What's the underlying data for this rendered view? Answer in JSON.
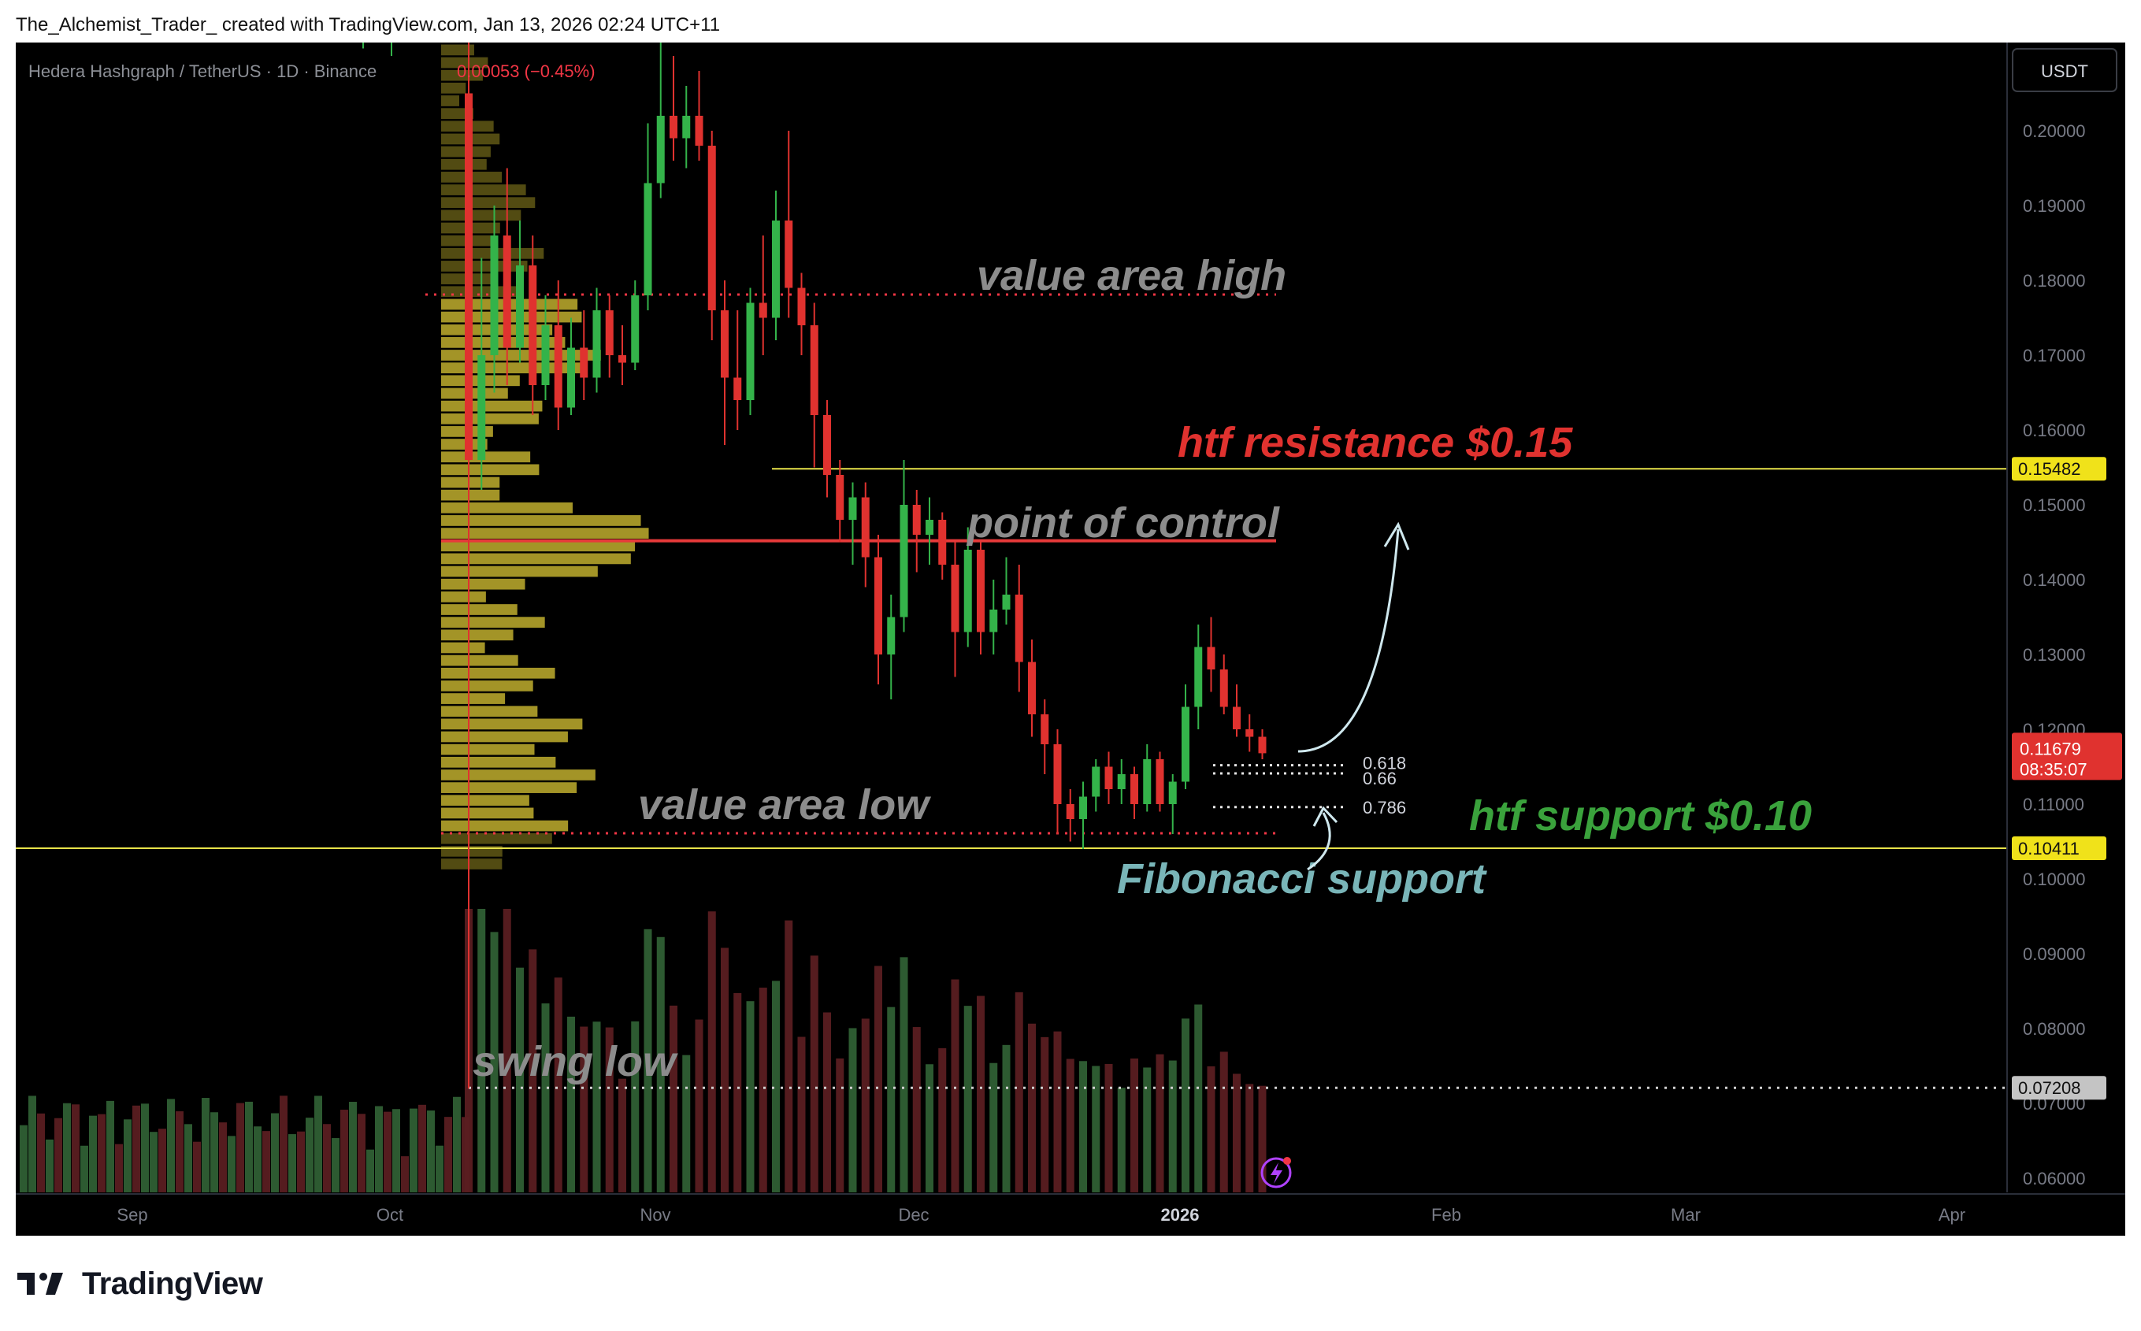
{
  "caption": "The_Alchemist_Trader_ created with TradingView.com, Jan 13, 2026 02:24 UTC+11",
  "symbol": {
    "name": "Hedera Hashgraph / TetherUS · 1D · Binance",
    "change": "0.00053 (−0.45%)"
  },
  "currency": "USDT",
  "brand": "TradingView",
  "chart_data": {
    "type": "candlestick",
    "x_axis_labels": [
      "Sep",
      "Oct",
      "Nov",
      "Dec",
      "2026",
      "Feb",
      "Mar",
      "Apr"
    ],
    "y_ticks": [
      "0.20000",
      "0.19000",
      "0.18000",
      "0.17000",
      "0.16000",
      "0.15000",
      "0.14000",
      "0.13000",
      "0.12000",
      "0.11000",
      "0.10000",
      "0.09000",
      "0.08000",
      "0.07000",
      "0.06000"
    ],
    "ylim": [
      0.0585,
      0.2215
    ],
    "price_tags": {
      "resistance": "0.15482",
      "last_price": "0.11679",
      "countdown": "08:35:07",
      "support": "0.10411",
      "swing_low": "0.07208"
    },
    "levels": {
      "value_area_high": 0.1781,
      "point_of_control": 0.1452,
      "value_area_low": 0.1061,
      "htf_resistance": 0.15482,
      "htf_support": 0.10411,
      "swing_low": 0.07208
    },
    "fib_levels": [
      {
        "label": "0.618",
        "value": 0.1152
      },
      {
        "label": "0.66",
        "value": 0.1141
      },
      {
        "label": "0.786",
        "value": 0.1096
      }
    ],
    "annotations": {
      "value_area_high": "value area high",
      "htf_resistance": "htf resistance $0.15",
      "point_of_control": "point of control",
      "value_area_low": "value area low",
      "htf_support": "htf support $0.10",
      "fibonacci_support": "Fibonacci support",
      "swing_low": "swing low"
    },
    "candles": [
      {
        "t": 0,
        "o": 0.205,
        "h": 0.218,
        "l": 0.072,
        "c": 0.156
      },
      {
        "t": 1,
        "o": 0.156,
        "h": 0.183,
        "l": 0.152,
        "c": 0.17
      },
      {
        "t": 2,
        "o": 0.17,
        "h": 0.19,
        "l": 0.165,
        "c": 0.186
      },
      {
        "t": 3,
        "o": 0.186,
        "h": 0.195,
        "l": 0.166,
        "c": 0.171
      },
      {
        "t": 4,
        "o": 0.171,
        "h": 0.188,
        "l": 0.169,
        "c": 0.182
      },
      {
        "t": 5,
        "o": 0.182,
        "h": 0.186,
        "l": 0.162,
        "c": 0.166
      },
      {
        "t": 6,
        "o": 0.166,
        "h": 0.178,
        "l": 0.164,
        "c": 0.174
      },
      {
        "t": 7,
        "o": 0.174,
        "h": 0.18,
        "l": 0.16,
        "c": 0.163
      },
      {
        "t": 8,
        "o": 0.163,
        "h": 0.175,
        "l": 0.162,
        "c": 0.171
      },
      {
        "t": 9,
        "o": 0.171,
        "h": 0.176,
        "l": 0.164,
        "c": 0.167
      },
      {
        "t": 10,
        "o": 0.167,
        "h": 0.179,
        "l": 0.165,
        "c": 0.176
      },
      {
        "t": 11,
        "o": 0.176,
        "h": 0.178,
        "l": 0.167,
        "c": 0.17
      },
      {
        "t": 12,
        "o": 0.17,
        "h": 0.174,
        "l": 0.166,
        "c": 0.169
      },
      {
        "t": 13,
        "o": 0.169,
        "h": 0.18,
        "l": 0.168,
        "c": 0.178
      },
      {
        "t": 14,
        "o": 0.178,
        "h": 0.201,
        "l": 0.176,
        "c": 0.193
      },
      {
        "t": 15,
        "o": 0.193,
        "h": 0.215,
        "l": 0.191,
        "c": 0.202
      },
      {
        "t": 16,
        "o": 0.202,
        "h": 0.21,
        "l": 0.196,
        "c": 0.199
      },
      {
        "t": 17,
        "o": 0.199,
        "h": 0.206,
        "l": 0.195,
        "c": 0.202
      },
      {
        "t": 18,
        "o": 0.202,
        "h": 0.208,
        "l": 0.196,
        "c": 0.198
      },
      {
        "t": 19,
        "o": 0.198,
        "h": 0.2,
        "l": 0.172,
        "c": 0.176
      },
      {
        "t": 20,
        "o": 0.176,
        "h": 0.18,
        "l": 0.158,
        "c": 0.167
      },
      {
        "t": 21,
        "o": 0.167,
        "h": 0.176,
        "l": 0.16,
        "c": 0.164
      },
      {
        "t": 22,
        "o": 0.164,
        "h": 0.179,
        "l": 0.162,
        "c": 0.177
      },
      {
        "t": 23,
        "o": 0.177,
        "h": 0.186,
        "l": 0.17,
        "c": 0.175
      },
      {
        "t": 24,
        "o": 0.175,
        "h": 0.192,
        "l": 0.172,
        "c": 0.188
      },
      {
        "t": 25,
        "o": 0.188,
        "h": 0.2,
        "l": 0.175,
        "c": 0.179
      },
      {
        "t": 26,
        "o": 0.179,
        "h": 0.181,
        "l": 0.17,
        "c": 0.174
      },
      {
        "t": 27,
        "o": 0.174,
        "h": 0.177,
        "l": 0.155,
        "c": 0.162
      },
      {
        "t": 28,
        "o": 0.162,
        "h": 0.164,
        "l": 0.151,
        "c": 0.154
      },
      {
        "t": 29,
        "o": 0.154,
        "h": 0.156,
        "l": 0.145,
        "c": 0.148
      },
      {
        "t": 30,
        "o": 0.148,
        "h": 0.153,
        "l": 0.142,
        "c": 0.151
      },
      {
        "t": 31,
        "o": 0.151,
        "h": 0.153,
        "l": 0.139,
        "c": 0.143
      },
      {
        "t": 32,
        "o": 0.143,
        "h": 0.146,
        "l": 0.126,
        "c": 0.13
      },
      {
        "t": 33,
        "o": 0.13,
        "h": 0.138,
        "l": 0.124,
        "c": 0.135
      },
      {
        "t": 34,
        "o": 0.135,
        "h": 0.156,
        "l": 0.133,
        "c": 0.15
      },
      {
        "t": 35,
        "o": 0.15,
        "h": 0.152,
        "l": 0.141,
        "c": 0.146
      },
      {
        "t": 36,
        "o": 0.146,
        "h": 0.151,
        "l": 0.142,
        "c": 0.148
      },
      {
        "t": 37,
        "o": 0.148,
        "h": 0.149,
        "l": 0.14,
        "c": 0.142
      },
      {
        "t": 38,
        "o": 0.142,
        "h": 0.145,
        "l": 0.127,
        "c": 0.133
      },
      {
        "t": 39,
        "o": 0.133,
        "h": 0.147,
        "l": 0.131,
        "c": 0.144
      },
      {
        "t": 40,
        "o": 0.144,
        "h": 0.145,
        "l": 0.13,
        "c": 0.133
      },
      {
        "t": 41,
        "o": 0.133,
        "h": 0.14,
        "l": 0.13,
        "c": 0.136
      },
      {
        "t": 42,
        "o": 0.136,
        "h": 0.143,
        "l": 0.134,
        "c": 0.138
      },
      {
        "t": 43,
        "o": 0.138,
        "h": 0.142,
        "l": 0.125,
        "c": 0.129
      },
      {
        "t": 44,
        "o": 0.129,
        "h": 0.132,
        "l": 0.119,
        "c": 0.122
      },
      {
        "t": 45,
        "o": 0.122,
        "h": 0.124,
        "l": 0.114,
        "c": 0.118
      },
      {
        "t": 46,
        "o": 0.118,
        "h": 0.12,
        "l": 0.106,
        "c": 0.11
      },
      {
        "t": 47,
        "o": 0.11,
        "h": 0.112,
        "l": 0.105,
        "c": 0.108
      },
      {
        "t": 48,
        "o": 0.108,
        "h": 0.113,
        "l": 0.104,
        "c": 0.111
      },
      {
        "t": 49,
        "o": 0.111,
        "h": 0.116,
        "l": 0.109,
        "c": 0.115
      },
      {
        "t": 50,
        "o": 0.115,
        "h": 0.117,
        "l": 0.11,
        "c": 0.112
      },
      {
        "t": 51,
        "o": 0.112,
        "h": 0.116,
        "l": 0.11,
        "c": 0.114
      },
      {
        "t": 52,
        "o": 0.114,
        "h": 0.115,
        "l": 0.108,
        "c": 0.11
      },
      {
        "t": 53,
        "o": 0.11,
        "h": 0.118,
        "l": 0.109,
        "c": 0.116
      },
      {
        "t": 54,
        "o": 0.116,
        "h": 0.117,
        "l": 0.109,
        "c": 0.11
      },
      {
        "t": 55,
        "o": 0.11,
        "h": 0.114,
        "l": 0.106,
        "c": 0.113
      },
      {
        "t": 56,
        "o": 0.113,
        "h": 0.126,
        "l": 0.112,
        "c": 0.123
      },
      {
        "t": 57,
        "o": 0.123,
        "h": 0.134,
        "l": 0.12,
        "c": 0.131
      },
      {
        "t": 58,
        "o": 0.131,
        "h": 0.135,
        "l": 0.125,
        "c": 0.128
      },
      {
        "t": 59,
        "o": 0.128,
        "h": 0.13,
        "l": 0.122,
        "c": 0.123
      },
      {
        "t": 60,
        "o": 0.123,
        "h": 0.126,
        "l": 0.119,
        "c": 0.12
      },
      {
        "t": 61,
        "o": 0.12,
        "h": 0.122,
        "l": 0.117,
        "c": 0.119
      },
      {
        "t": 62,
        "o": 0.119,
        "h": 0.12,
        "l": 0.116,
        "c": 0.1168
      }
    ]
  }
}
